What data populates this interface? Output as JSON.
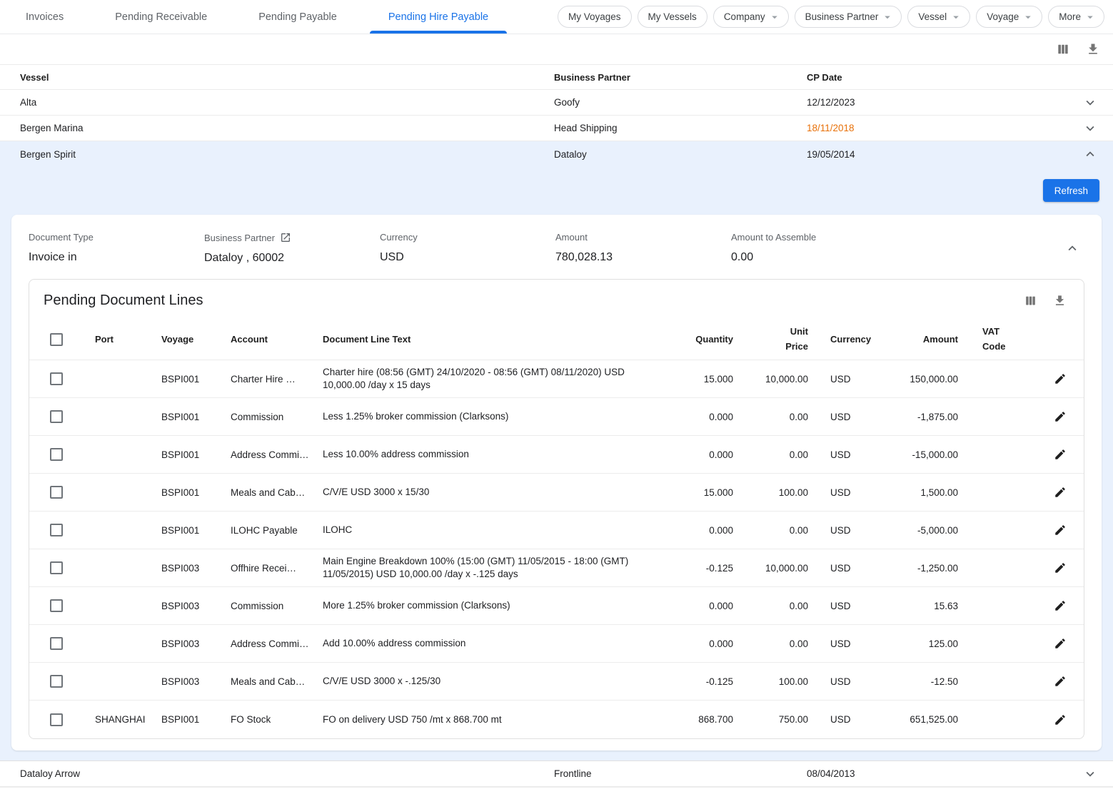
{
  "tabs": [
    {
      "label": "Invoices",
      "active": false
    },
    {
      "label": "Pending Receivable",
      "active": false
    },
    {
      "label": "Pending Payable",
      "active": false
    },
    {
      "label": "Pending Hire Payable",
      "active": true
    }
  ],
  "filters": [
    {
      "label": "My Voyages",
      "dropdown": false
    },
    {
      "label": "My Vessels",
      "dropdown": false
    },
    {
      "label": "Company",
      "dropdown": true
    },
    {
      "label": "Business Partner",
      "dropdown": true
    },
    {
      "label": "Vessel",
      "dropdown": true
    },
    {
      "label": "Voyage",
      "dropdown": true
    },
    {
      "label": "More",
      "dropdown": true
    }
  ],
  "main_table": {
    "columns": [
      "Vessel",
      "Business Partner",
      "CP Date"
    ],
    "rows": [
      {
        "vessel": "Alta",
        "partner": "Goofy",
        "cp_date": "12/12/2023",
        "expanded": false,
        "date_warning": false
      },
      {
        "vessel": "Bergen Marina",
        "partner": "Head Shipping",
        "cp_date": "18/11/2018",
        "expanded": false,
        "date_warning": true
      },
      {
        "vessel": "Bergen Spirit",
        "partner": "Dataloy",
        "cp_date": "19/05/2014",
        "expanded": true,
        "date_warning": false
      },
      {
        "vessel": "Dataloy Arrow",
        "partner": "Frontline",
        "cp_date": "08/04/2013",
        "expanded": false,
        "date_warning": false
      }
    ]
  },
  "expanded": {
    "refresh_label": "Refresh",
    "summary": {
      "document_type_label": "Document Type",
      "document_type": "Invoice in",
      "business_partner_label": "Business Partner",
      "business_partner": "Dataloy , 60002",
      "currency_label": "Currency",
      "currency": "USD",
      "amount_label": "Amount",
      "amount": "780,028.13",
      "amount_to_assemble_label": "Amount to Assemble",
      "amount_to_assemble": "0.00"
    },
    "lines": {
      "title": "Pending Document Lines",
      "columns": {
        "port": "Port",
        "voyage": "Voyage",
        "account": "Account",
        "text": "Document Line Text",
        "quantity": "Quantity",
        "unit_price": "Unit Price",
        "currency": "Currency",
        "amount": "Amount",
        "vat_code": "VAT Code"
      },
      "rows": [
        {
          "port": "",
          "voyage": "BSPI001",
          "account": "Charter Hire …",
          "text": "Charter hire (08:56 (GMT) 24/10/2020 - 08:56 (GMT) 08/11/2020) USD 10,000.00 /day x 15 days",
          "quantity": "15.000",
          "unit_price": "10,000.00",
          "currency": "USD",
          "amount": "150,000.00",
          "vat_code": ""
        },
        {
          "port": "",
          "voyage": "BSPI001",
          "account": "Commission",
          "text": "Less 1.25% broker commission (Clarksons)",
          "quantity": "0.000",
          "unit_price": "0.00",
          "currency": "USD",
          "amount": "-1,875.00",
          "vat_code": ""
        },
        {
          "port": "",
          "voyage": "BSPI001",
          "account": "Address Commi…",
          "text": "Less 10.00% address commission",
          "quantity": "0.000",
          "unit_price": "0.00",
          "currency": "USD",
          "amount": "-15,000.00",
          "vat_code": ""
        },
        {
          "port": "",
          "voyage": "BSPI001",
          "account": "Meals and Cab…",
          "text": "C/V/E USD 3000 x 15/30",
          "quantity": "15.000",
          "unit_price": "100.00",
          "currency": "USD",
          "amount": "1,500.00",
          "vat_code": ""
        },
        {
          "port": "",
          "voyage": "BSPI001",
          "account": "ILOHC Payable",
          "text": "ILOHC",
          "quantity": "0.000",
          "unit_price": "0.00",
          "currency": "USD",
          "amount": "-5,000.00",
          "vat_code": ""
        },
        {
          "port": "",
          "voyage": "BSPI003",
          "account": "Offhire Recei…",
          "text": "Main Engine Breakdown 100% (15:00 (GMT) 11/05/2015 - 18:00 (GMT) 11/05/2015) USD 10,000.00 /day x -.125 days",
          "quantity": "-0.125",
          "unit_price": "10,000.00",
          "currency": "USD",
          "amount": "-1,250.00",
          "vat_code": ""
        },
        {
          "port": "",
          "voyage": "BSPI003",
          "account": "Commission",
          "text": "More 1.25% broker commission (Clarksons)",
          "quantity": "0.000",
          "unit_price": "0.00",
          "currency": "USD",
          "amount": "15.63",
          "vat_code": ""
        },
        {
          "port": "",
          "voyage": "BSPI003",
          "account": "Address Commi…",
          "text": "Add 10.00% address commission",
          "quantity": "0.000",
          "unit_price": "0.00",
          "currency": "USD",
          "amount": "125.00",
          "vat_code": ""
        },
        {
          "port": "",
          "voyage": "BSPI003",
          "account": "Meals and Cab…",
          "text": "C/V/E USD 3000 x -.125/30",
          "quantity": "-0.125",
          "unit_price": "100.00",
          "currency": "USD",
          "amount": "-12.50",
          "vat_code": ""
        },
        {
          "port": "SHANGHAI",
          "voyage": "BSPI001",
          "account": "FO Stock",
          "text": "FO on delivery USD 750 /mt x 868.700 mt",
          "quantity": "868.700",
          "unit_price": "750.00",
          "currency": "USD",
          "amount": "651,525.00",
          "vat_code": ""
        }
      ]
    }
  },
  "colors": {
    "accent_blue": "#1a73e8",
    "warning_date_orange": "#e8710a",
    "expanded_panel_bg": "#e9f1fd",
    "icon_gray": "#757575"
  }
}
